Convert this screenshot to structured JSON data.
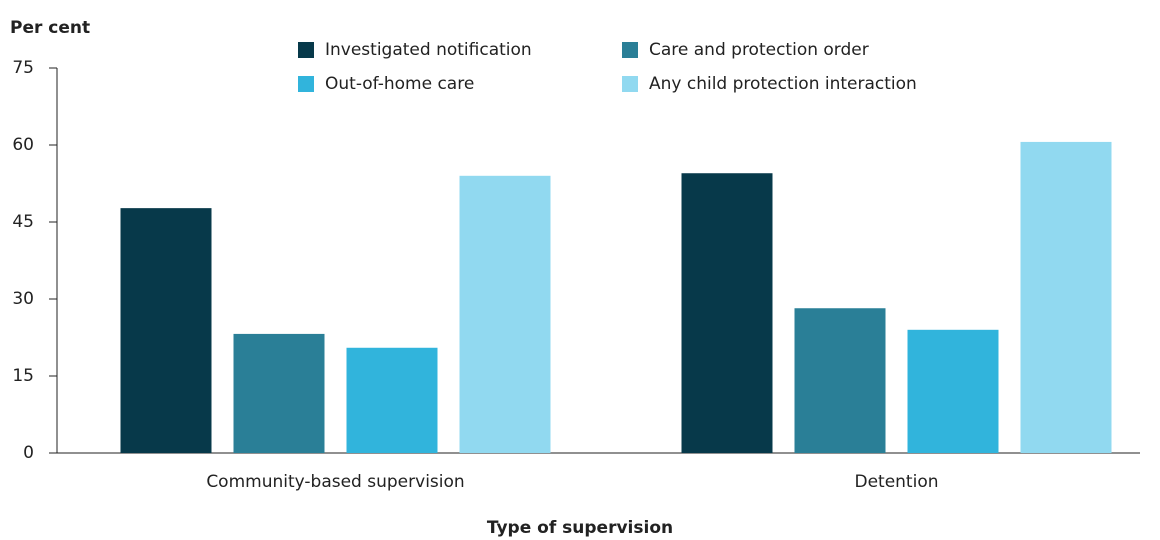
{
  "chart_data": {
    "type": "bar",
    "y_axis_label": "Per cent",
    "x_axis_label": "Type of supervision",
    "categories": [
      "Community-based supervision",
      "Detention"
    ],
    "series": [
      {
        "name": "Investigated notification",
        "color": "#07394a",
        "values": [
          47.7,
          54.5
        ]
      },
      {
        "name": "Care and protection order",
        "color": "#2a7f97",
        "values": [
          23.2,
          28.2
        ]
      },
      {
        "name": "Out-of-home care",
        "color": "#31b4dc",
        "values": [
          20.5,
          24.0
        ]
      },
      {
        "name": "Any child protection interaction",
        "color": "#91d9f0",
        "values": [
          54.0,
          60.6
        ]
      }
    ],
    "ylim": [
      0,
      75
    ],
    "yticks": [
      0,
      15,
      30,
      45,
      60,
      75
    ],
    "grid": false
  }
}
